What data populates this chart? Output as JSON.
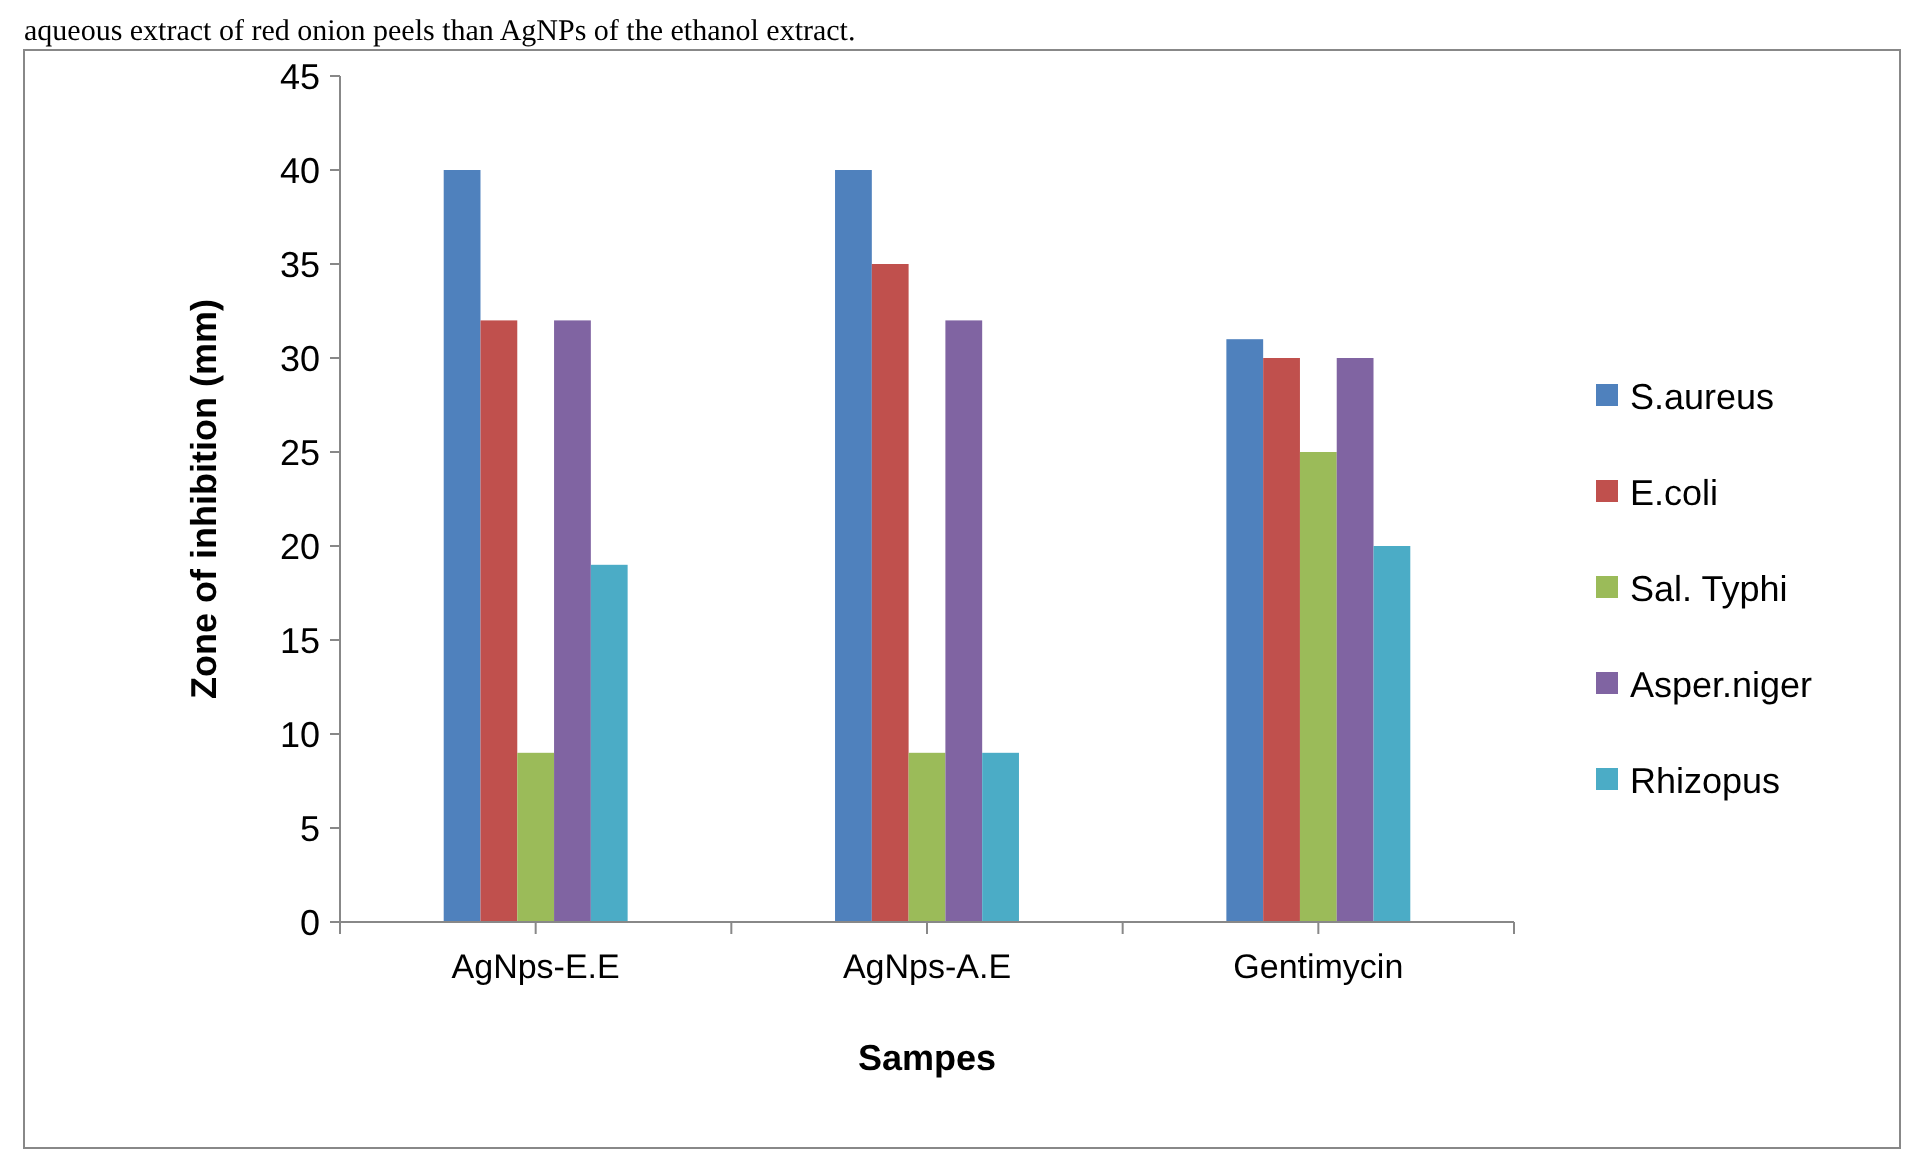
{
  "chart_data": {
    "type": "bar",
    "xlabel": "Sampes",
    "ylabel": "Zone of inhibition (mm)",
    "annotations": [
      "aqueous extract of red onion peels than AgNPs of the ethanol extract."
    ],
    "categories": [
      "AgNps-E.E",
      "AgNps-A.E",
      "Gentimycin"
    ],
    "series": [
      {
        "name": "S.aureus",
        "color": "#4f81bd",
        "values": [
          40,
          40,
          31
        ]
      },
      {
        "name": "E.coli",
        "color": "#c0504d",
        "values": [
          32,
          35,
          30
        ]
      },
      {
        "name": "Sal. Typhi",
        "color": "#9bbb59",
        "values": [
          9,
          9,
          25
        ]
      },
      {
        "name": "Asper.niger",
        "color": "#8064a2",
        "values": [
          32,
          32,
          30
        ]
      },
      {
        "name": "Rhizopus",
        "color": "#4bacc6",
        "values": [
          19,
          9,
          20
        ]
      }
    ],
    "ylim": [
      0,
      45
    ],
    "yticks": [
      0,
      5,
      10,
      15,
      20,
      25,
      30,
      35,
      40,
      45
    ],
    "grid": false,
    "legend": "right"
  }
}
